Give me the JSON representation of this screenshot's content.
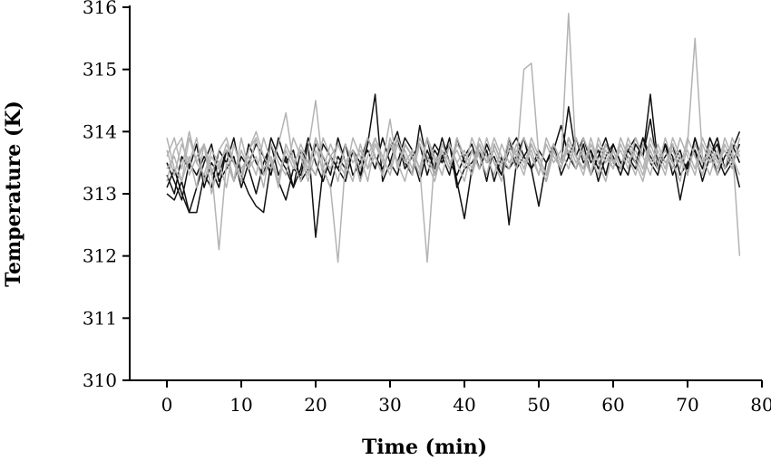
{
  "chart_data": {
    "type": "line",
    "title": "",
    "xlabel": "Time (min)",
    "ylabel": "Temperature (K)",
    "xlim": [
      -5,
      80
    ],
    "ylim": [
      310,
      316
    ],
    "xticks": [
      0,
      10,
      20,
      30,
      40,
      50,
      60,
      70,
      80
    ],
    "yticks": [
      310,
      311,
      312,
      313,
      314,
      315,
      316
    ],
    "grid": false,
    "legend": "none",
    "colors": {
      "dark": "#111111",
      "light": "#b3b3b3",
      "axis": "#000000"
    },
    "x": [
      0,
      1,
      2,
      3,
      4,
      5,
      6,
      7,
      8,
      9,
      10,
      11,
      12,
      13,
      14,
      15,
      16,
      17,
      18,
      19,
      20,
      21,
      22,
      23,
      24,
      25,
      26,
      27,
      28,
      29,
      30,
      31,
      32,
      33,
      34,
      35,
      36,
      37,
      38,
      39,
      40,
      41,
      42,
      43,
      44,
      45,
      46,
      47,
      48,
      49,
      50,
      51,
      52,
      53,
      54,
      55,
      56,
      57,
      58,
      59,
      60,
      61,
      62,
      63,
      64,
      65,
      66,
      67,
      68,
      69,
      70,
      71,
      72,
      73,
      74,
      75,
      76,
      77
    ],
    "series": [
      {
        "color": "#111111",
        "values": [
          313.0,
          312.9,
          313.2,
          312.7,
          312.7,
          313.3,
          313.1,
          313.7,
          313.5,
          313.9,
          313.3,
          313.0,
          312.8,
          312.7,
          313.5,
          313.2,
          312.9,
          313.4,
          313.3,
          313.8,
          312.3,
          313.4,
          313.1,
          313.6,
          313.4,
          313.7,
          313.2,
          313.9,
          313.6,
          313.3,
          313.8,
          313.5,
          313.9,
          313.7,
          313.4,
          313.9,
          313.3,
          313.6,
          313.8,
          313.1,
          313.4,
          313.5,
          313.7,
          313.2,
          313.8,
          313.5,
          313.4,
          313.6,
          313.9,
          313.4,
          312.8,
          313.5,
          313.7,
          313.4,
          313.9,
          313.6,
          313.4,
          313.7,
          313.2,
          313.6,
          313.8,
          313.5,
          313.3,
          313.8,
          313.6,
          314.2,
          313.4,
          313.6,
          313.8,
          313.3,
          313.5,
          313.7,
          313.2,
          313.6,
          313.9,
          313.4,
          313.6,
          313.1
        ]
      },
      {
        "color": "#111111",
        "values": [
          313.1,
          313.4,
          313.0,
          312.7,
          313.1,
          313.5,
          313.8,
          313.2,
          313.4,
          313.6,
          313.1,
          313.5,
          313.8,
          313.6,
          313.3,
          313.9,
          313.5,
          313.7,
          313.2,
          313.4,
          313.8,
          313.6,
          313.3,
          313.9,
          313.5,
          313.7,
          313.3,
          313.8,
          314.6,
          313.2,
          313.5,
          313.9,
          313.4,
          313.6,
          313.8,
          313.3,
          313.7,
          313.5,
          313.9,
          313.2,
          312.6,
          313.4,
          313.8,
          313.5,
          313.6,
          313.3,
          313.9,
          313.4,
          313.6,
          313.8,
          313.5,
          313.2,
          313.7,
          314.1,
          313.6,
          313.4,
          313.8,
          313.3,
          313.6,
          313.9,
          313.5,
          313.4,
          313.7,
          313.9,
          313.6,
          314.6,
          313.5,
          313.8,
          313.3,
          313.6,
          313.4,
          313.9,
          313.5,
          313.7,
          313.3,
          313.6,
          313.8,
          313.5
        ]
      },
      {
        "color": "#111111",
        "values": [
          313.3,
          313.0,
          313.6,
          313.4,
          313.8,
          313.1,
          313.5,
          313.3,
          313.7,
          313.2,
          313.6,
          313.4,
          313.0,
          313.5,
          313.8,
          313.3,
          313.6,
          313.1,
          313.4,
          313.9,
          313.5,
          313.2,
          313.6,
          313.4,
          313.8,
          313.3,
          313.5,
          313.7,
          313.4,
          313.9,
          313.5,
          313.3,
          313.8,
          313.6,
          313.2,
          313.7,
          313.4,
          313.9,
          313.5,
          313.3,
          313.6,
          313.8,
          313.4,
          313.7,
          313.2,
          313.6,
          312.5,
          313.5,
          313.9,
          313.4,
          313.6,
          313.3,
          313.8,
          313.5,
          314.4,
          313.6,
          313.9,
          313.5,
          313.7,
          313.3,
          313.8,
          313.5,
          313.6,
          313.4,
          313.9,
          313.5,
          313.3,
          313.8,
          313.6,
          312.9,
          313.5,
          313.7,
          313.4,
          313.9,
          313.6,
          313.3,
          313.5,
          313.8
        ]
      },
      {
        "color": "#111111",
        "values": [
          313.5,
          313.2,
          312.9,
          313.5,
          313.3,
          313.6,
          313.4,
          313.1,
          313.7,
          313.5,
          313.2,
          313.8,
          313.5,
          313.3,
          313.9,
          313.6,
          313.4,
          313.1,
          313.7,
          313.5,
          313.3,
          313.8,
          313.6,
          313.4,
          313.2,
          313.7,
          313.5,
          313.9,
          313.6,
          313.4,
          313.7,
          314.0,
          313.5,
          313.3,
          314.1,
          313.5,
          313.8,
          313.6,
          313.3,
          313.9,
          313.5,
          313.7,
          313.4,
          313.8,
          313.5,
          313.3,
          313.7,
          313.9,
          313.6,
          313.4,
          313.7,
          313.5,
          313.8,
          313.3,
          313.6,
          313.9,
          313.5,
          313.7,
          313.4,
          313.8,
          313.6,
          313.3,
          313.7,
          313.5,
          313.9,
          313.6,
          313.4,
          313.8,
          313.5,
          313.7,
          313.3,
          313.9,
          313.5,
          313.6,
          313.8,
          313.4,
          313.7,
          314.0
        ]
      },
      {
        "color": "#b3b3b3",
        "values": [
          313.9,
          313.4,
          313.2,
          313.6,
          313.1,
          313.8,
          313.4,
          312.1,
          313.5,
          313.2,
          313.7,
          313.4,
          313.9,
          313.3,
          313.6,
          313.1,
          313.8,
          313.5,
          313.2,
          313.7,
          314.5,
          313.4,
          313.1,
          311.9,
          313.5,
          313.2,
          313.8,
          313.4,
          313.6,
          313.3,
          313.9,
          313.5,
          313.2,
          313.7,
          313.4,
          311.9,
          313.6,
          313.3,
          313.8,
          313.5,
          313.2,
          313.7,
          313.4,
          313.9,
          313.5,
          313.2,
          313.8,
          313.5,
          315.0,
          315.1,
          313.6,
          313.3,
          313.8,
          313.5,
          315.9,
          313.6,
          313.4,
          313.9,
          313.5,
          313.2,
          313.7,
          313.4,
          313.8,
          313.5,
          313.2,
          313.7,
          313.4,
          313.9,
          313.5,
          313.2,
          313.8,
          315.5,
          313.6,
          313.3,
          313.7,
          313.4,
          313.8,
          312.0
        ]
      },
      {
        "color": "#b3b3b3",
        "values": [
          313.6,
          313.9,
          313.4,
          314.0,
          313.5,
          313.8,
          313.3,
          313.7,
          313.9,
          313.5,
          313.2,
          313.7,
          314.0,
          313.6,
          313.4,
          313.8,
          314.3,
          313.5,
          313.7,
          313.3,
          313.9,
          313.6,
          313.4,
          313.8,
          313.5,
          313.7,
          313.2,
          313.6,
          313.9,
          313.5,
          314.2,
          313.4,
          313.8,
          313.6,
          313.3,
          313.9,
          313.5,
          313.7,
          313.4,
          313.8,
          313.6,
          313.3,
          313.7,
          313.5,
          313.9,
          313.6,
          313.4,
          313.8,
          313.5,
          313.7,
          313.3,
          313.9,
          313.6,
          313.4,
          313.8,
          313.5,
          313.7,
          313.3,
          313.9,
          313.6,
          313.4,
          313.8,
          313.5,
          313.7,
          313.4,
          313.9,
          313.6,
          313.3,
          313.8,
          313.5,
          313.7,
          313.4,
          313.9,
          313.6,
          313.3,
          313.8,
          313.5,
          313.7
        ]
      },
      {
        "color": "#b3b3b3",
        "values": [
          313.2,
          313.7,
          313.9,
          313.3,
          313.6,
          313.8,
          313.0,
          313.5,
          313.7,
          313.2,
          313.9,
          313.4,
          313.6,
          313.1,
          313.8,
          313.5,
          313.3,
          313.9,
          313.6,
          313.2,
          313.7,
          313.4,
          313.8,
          313.5,
          313.3,
          313.9,
          313.6,
          313.2,
          313.8,
          313.5,
          313.4,
          313.9,
          313.6,
          313.3,
          313.8,
          313.5,
          313.2,
          313.7,
          313.4,
          313.9,
          313.6,
          313.3,
          313.8,
          313.5,
          313.7,
          313.4,
          313.9,
          313.6,
          313.3,
          313.8,
          313.5,
          313.2,
          313.7,
          313.4,
          313.9,
          313.6,
          313.3,
          313.8,
          313.5,
          313.7,
          313.4,
          313.9,
          313.6,
          313.3,
          313.8,
          313.5,
          313.7,
          313.4,
          313.9,
          313.6,
          313.3,
          313.8,
          313.5,
          313.7,
          313.4,
          313.9,
          313.6,
          313.3
        ]
      },
      {
        "color": "#b3b3b3",
        "values": [
          313.7,
          313.3,
          313.8,
          313.5,
          313.9,
          313.2,
          313.6,
          313.4,
          313.8,
          313.5,
          313.3,
          313.7,
          313.9,
          313.4,
          313.6,
          313.2,
          313.8,
          313.5,
          313.7,
          313.4,
          313.9,
          313.3,
          313.6,
          313.8,
          313.5,
          313.7,
          313.4,
          313.9,
          313.6,
          313.3,
          313.8,
          313.5,
          313.7,
          313.4,
          313.9,
          313.6,
          313.3,
          313.8,
          313.5,
          313.7,
          313.4,
          313.9,
          313.6,
          313.3,
          313.8,
          313.5,
          313.7,
          313.4,
          313.9,
          313.6,
          313.3,
          313.8,
          313.5,
          313.7,
          313.4,
          313.9,
          313.6,
          313.3,
          313.8,
          313.5,
          313.7,
          313.4,
          313.9,
          313.6,
          313.3,
          313.8,
          313.5,
          313.7,
          313.4,
          313.9,
          313.6,
          313.3,
          313.8,
          313.5,
          313.7,
          313.4,
          313.9,
          313.6
        ]
      },
      {
        "color": "#b3b3b3",
        "values": [
          313.4,
          313.6,
          313.2,
          313.9,
          313.5,
          313.3,
          313.7,
          313.5,
          313.1,
          313.8,
          313.4,
          313.6,
          313.3,
          313.9,
          313.5,
          313.2,
          313.7,
          313.4,
          313.8,
          313.5,
          313.3,
          313.9,
          313.6,
          313.2,
          313.8,
          313.5,
          313.7,
          313.4,
          313.9,
          313.6,
          313.3,
          313.8,
          313.5,
          313.7,
          313.4,
          313.9,
          313.6,
          313.3,
          313.8,
          313.5,
          313.7,
          313.4,
          313.9,
          313.6,
          313.3,
          313.8,
          313.5,
          313.7,
          313.4,
          313.9,
          313.6,
          313.3,
          313.8,
          313.5,
          313.7,
          313.4,
          313.9,
          313.6,
          313.3,
          313.8,
          313.5,
          313.7,
          313.4,
          313.9,
          313.6,
          313.3,
          313.8,
          313.5,
          313.7,
          313.4,
          313.9,
          313.6,
          313.3,
          313.8,
          313.5,
          313.7,
          313.4,
          313.9
        ]
      }
    ]
  }
}
